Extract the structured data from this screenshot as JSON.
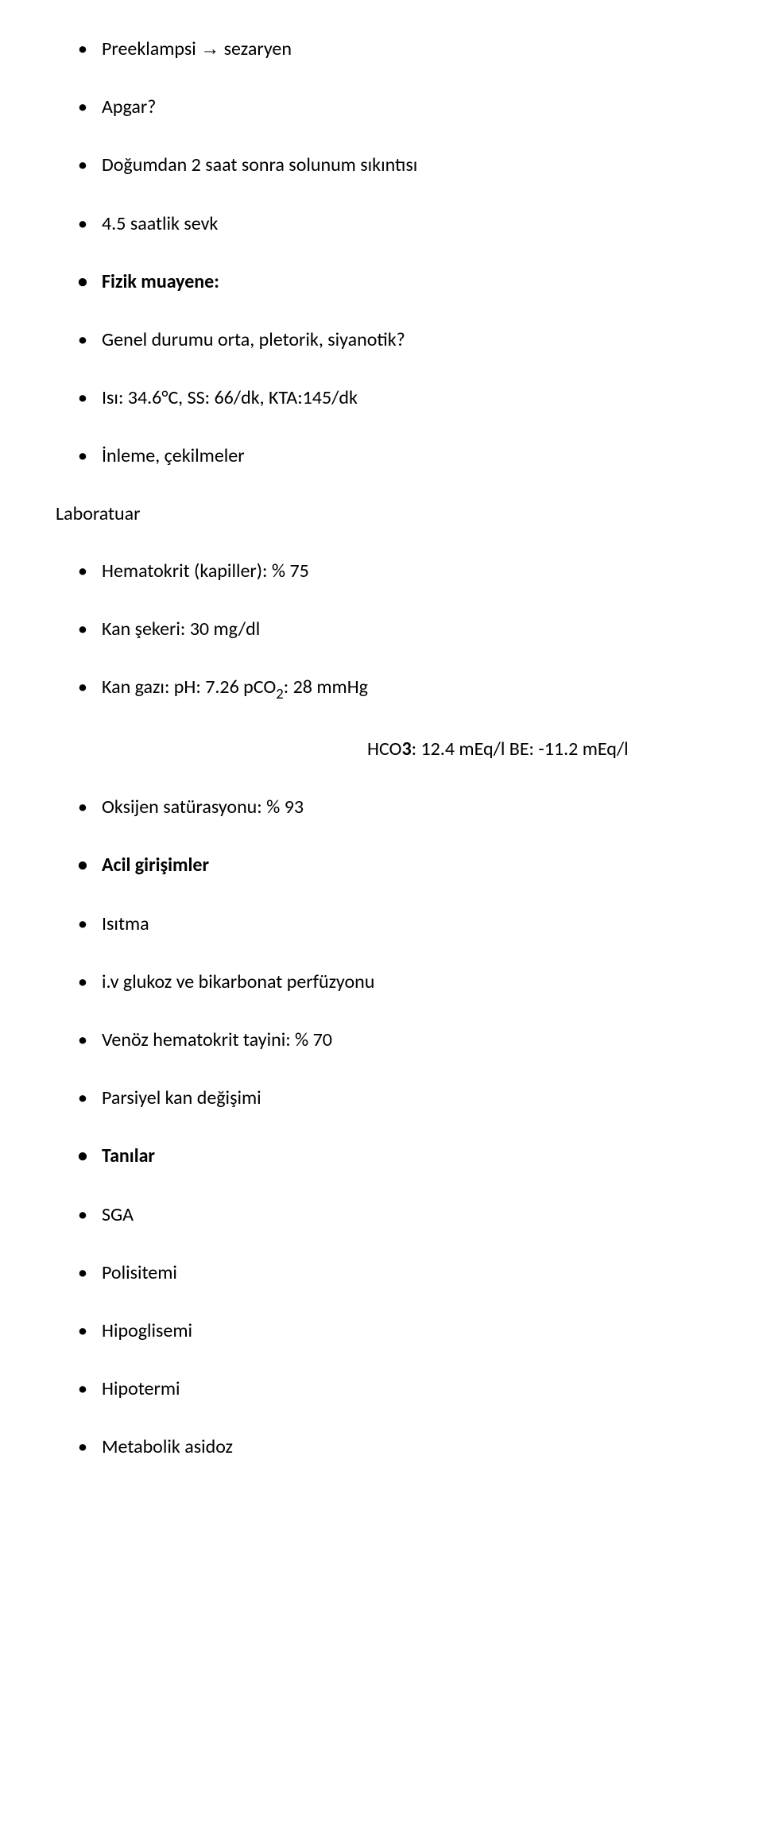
{
  "items_a": [
    {
      "html": "Preeklampsi <span class='arrow'>→</span> sezaryen",
      "bold": false
    },
    {
      "html": "Apgar?",
      "bold": false
    },
    {
      "html": "Doğumdan 2 saat sonra solunum sıkıntısı",
      "bold": false
    },
    {
      "html": "4.5 saatlik sevk",
      "bold": false
    },
    {
      "html": "Fizik muayene:",
      "bold": true
    },
    {
      "html": "Genel durumu orta, pletorik, siyanotik?",
      "bold": false
    },
    {
      "html": "Isı: 34.6°C, SS: 66/dk, KTA:145/dk",
      "bold": false
    },
    {
      "html": "İnleme, çekilmeler",
      "bold": false
    }
  ],
  "section_label": "Laboratuar",
  "items_b": [
    {
      "html": "Hematokrit (kapiller): % 75",
      "bold": false
    },
    {
      "html": "Kan şekeri: 30 mg/dl",
      "bold": false
    },
    {
      "html": "Kan gazı: pH: 7.26 pCO<span class='sub2'>2</span>: 28 mmHg",
      "bold": false
    }
  ],
  "indent_line": "HCO<span class='bold'>3</span>: 12.4 mEq/l BE: -11.2 mEq/l",
  "items_c": [
    {
      "html": "Oksijen satürasyonu: % 93",
      "bold": false
    },
    {
      "html": "Acil girişimler",
      "bold": true
    },
    {
      "html": "Isıtma",
      "bold": false
    },
    {
      "html": "i.v glukoz ve bikarbonat perfüzyonu",
      "bold": false
    },
    {
      "html": "Venöz hematokrit tayini: % 70",
      "bold": false
    },
    {
      "html": "Parsiyel kan değişimi",
      "bold": false
    },
    {
      "html": "Tanılar",
      "bold": true
    },
    {
      "html": "SGA",
      "bold": false
    },
    {
      "html": "Polisitemi",
      "bold": false
    },
    {
      "html": "Hipoglisemi",
      "bold": false
    },
    {
      "html": "Hipotermi",
      "bold": false
    },
    {
      "html": "Metabolik asidoz",
      "bold": false
    }
  ]
}
